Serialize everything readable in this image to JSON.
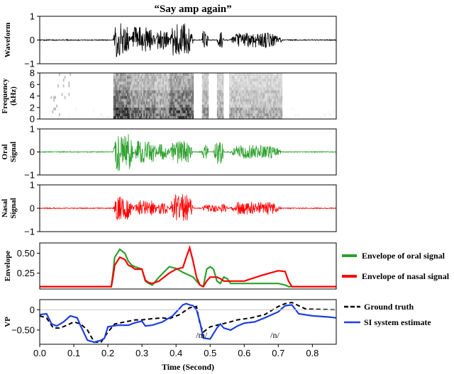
{
  "chart_data": [
    {
      "type": "line",
      "title": "“Say amp again”",
      "ylabel": "Waveform",
      "ylim": [
        -1,
        1
      ],
      "yticks": [
        1,
        0,
        -1
      ],
      "color": "#000000",
      "bursts": [
        {
          "start": 0.215,
          "end": 0.265,
          "amp": 0.72
        },
        {
          "start": 0.265,
          "end": 0.34,
          "amp": 0.55
        },
        {
          "start": 0.34,
          "end": 0.38,
          "amp": 0.45
        },
        {
          "start": 0.38,
          "end": 0.45,
          "amp": 0.7
        },
        {
          "start": 0.475,
          "end": 0.495,
          "amp": 0.4
        },
        {
          "start": 0.52,
          "end": 0.54,
          "amp": 0.35
        },
        {
          "start": 0.555,
          "end": 0.71,
          "amp": 0.32
        }
      ]
    },
    {
      "type": "heatmap",
      "ylabel": "Frequency (kHz)",
      "ylim": [
        0,
        8
      ],
      "yticks": [
        8,
        6,
        4,
        2,
        0
      ],
      "color": "#000000"
    },
    {
      "type": "line",
      "ylabel": "Oral Signal",
      "ylim": [
        -1,
        1
      ],
      "yticks": [
        1,
        0,
        -1
      ],
      "color": "#2ca02c",
      "bursts": [
        {
          "start": 0.215,
          "end": 0.275,
          "amp": 0.82
        },
        {
          "start": 0.275,
          "end": 0.345,
          "amp": 0.5
        },
        {
          "start": 0.345,
          "end": 0.38,
          "amp": 0.35
        },
        {
          "start": 0.38,
          "end": 0.45,
          "amp": 0.5
        },
        {
          "start": 0.475,
          "end": 0.495,
          "amp": 0.38
        },
        {
          "start": 0.51,
          "end": 0.54,
          "amp": 0.55
        },
        {
          "start": 0.555,
          "end": 0.71,
          "amp": 0.3
        }
      ]
    },
    {
      "type": "line",
      "ylabel": "Nasal Signal",
      "ylim": [
        -1,
        1
      ],
      "yticks": [
        1,
        0,
        -1
      ],
      "color": "#ff0000",
      "bursts": [
        {
          "start": 0.215,
          "end": 0.275,
          "amp": 0.5
        },
        {
          "start": 0.275,
          "end": 0.345,
          "amp": 0.35
        },
        {
          "start": 0.345,
          "end": 0.38,
          "amp": 0.25
        },
        {
          "start": 0.38,
          "end": 0.45,
          "amp": 0.6
        },
        {
          "start": 0.475,
          "end": 0.53,
          "amp": 0.15
        },
        {
          "start": 0.53,
          "end": 0.55,
          "amp": 0.2
        },
        {
          "start": 0.555,
          "end": 0.71,
          "amp": 0.28
        }
      ]
    },
    {
      "type": "line",
      "ylabel": "Envelope",
      "ylim": [
        0.05,
        0.63
      ],
      "yticks": [
        0.5,
        0.25
      ],
      "series": [
        {
          "name": "Envelope of oral signal",
          "color": "#2ca02c",
          "x": [
            0.0,
            0.21,
            0.215,
            0.22,
            0.235,
            0.25,
            0.26,
            0.27,
            0.28,
            0.3,
            0.31,
            0.32,
            0.33,
            0.35,
            0.38,
            0.4,
            0.42,
            0.44,
            0.45,
            0.46,
            0.47,
            0.48,
            0.49,
            0.5,
            0.51,
            0.52,
            0.53,
            0.54,
            0.55,
            0.56,
            0.58,
            0.6,
            0.65,
            0.7,
            0.72,
            0.73,
            0.74,
            0.87
          ],
          "y": [
            0.08,
            0.08,
            0.25,
            0.45,
            0.55,
            0.5,
            0.4,
            0.35,
            0.33,
            0.3,
            0.15,
            0.12,
            0.1,
            0.2,
            0.33,
            0.31,
            0.26,
            0.22,
            0.2,
            0.15,
            0.1,
            0.08,
            0.3,
            0.33,
            0.3,
            0.15,
            0.12,
            0.2,
            0.18,
            0.12,
            0.12,
            0.12,
            0.12,
            0.12,
            0.1,
            0.08,
            0.08,
            0.08
          ]
        },
        {
          "name": "Envelope of nasal signal",
          "color": "#ff0000",
          "x": [
            0.0,
            0.21,
            0.215,
            0.22,
            0.235,
            0.25,
            0.26,
            0.27,
            0.28,
            0.3,
            0.31,
            0.32,
            0.33,
            0.35,
            0.38,
            0.4,
            0.42,
            0.43,
            0.44,
            0.45,
            0.46,
            0.47,
            0.48,
            0.49,
            0.5,
            0.52,
            0.53,
            0.54,
            0.55,
            0.58,
            0.6,
            0.65,
            0.7,
            0.72,
            0.73,
            0.74,
            0.87
          ],
          "y": [
            0.08,
            0.08,
            0.2,
            0.35,
            0.45,
            0.42,
            0.35,
            0.33,
            0.3,
            0.3,
            0.16,
            0.13,
            0.12,
            0.15,
            0.25,
            0.3,
            0.32,
            0.45,
            0.57,
            0.4,
            0.2,
            0.1,
            0.08,
            0.15,
            0.2,
            0.2,
            0.18,
            0.15,
            0.15,
            0.15,
            0.15,
            0.22,
            0.28,
            0.27,
            0.15,
            0.08,
            0.08
          ]
        }
      ]
    },
    {
      "type": "line",
      "ylabel": "VP",
      "ylim": [
        -0.85,
        0.25
      ],
      "yticks": [
        0.0,
        -0.5
      ],
      "xlabel": "Time (Second)",
      "xlim": [
        0,
        0.87
      ],
      "xticks": [
        "0.0",
        "0.1",
        "0.2",
        "0.3",
        "0.4",
        "0.5",
        "0.6",
        "0.7",
        "0.8"
      ],
      "annotations": [
        {
          "text": "/m/",
          "x": 0.475,
          "y": -0.45
        },
        {
          "text": "/n/",
          "x": 0.69,
          "y": -0.45
        }
      ],
      "series": [
        {
          "name": "Ground truth",
          "color": "#000000",
          "dashed": true,
          "x": [
            0.0,
            0.02,
            0.04,
            0.06,
            0.08,
            0.1,
            0.12,
            0.14,
            0.16,
            0.18,
            0.2,
            0.22,
            0.25,
            0.28,
            0.3,
            0.33,
            0.36,
            0.38,
            0.41,
            0.44,
            0.46,
            0.47,
            0.48,
            0.5,
            0.52,
            0.55,
            0.58,
            0.62,
            0.66,
            0.7,
            0.72,
            0.74,
            0.78,
            0.87
          ],
          "y": [
            -0.15,
            -0.2,
            -0.45,
            -0.45,
            -0.38,
            -0.3,
            -0.35,
            -0.5,
            -0.8,
            -0.8,
            -0.55,
            -0.35,
            -0.3,
            -0.25,
            -0.25,
            -0.22,
            -0.2,
            -0.22,
            -0.12,
            0.05,
            0.08,
            -0.35,
            -0.55,
            -0.42,
            -0.38,
            -0.32,
            -0.25,
            -0.2,
            -0.12,
            0.08,
            0.15,
            0.18,
            0.02,
            0.0
          ]
        },
        {
          "name": "SI system  estimate",
          "color": "#1f3fe0",
          "dashed": false,
          "x": [
            0.0,
            0.02,
            0.035,
            0.05,
            0.07,
            0.09,
            0.11,
            0.12,
            0.14,
            0.16,
            0.18,
            0.19,
            0.2,
            0.23,
            0.26,
            0.28,
            0.3,
            0.31,
            0.33,
            0.36,
            0.39,
            0.42,
            0.43,
            0.44,
            0.45,
            0.46,
            0.47,
            0.48,
            0.5,
            0.52,
            0.53,
            0.54,
            0.56,
            0.58,
            0.6,
            0.63,
            0.66,
            0.7,
            0.72,
            0.74,
            0.76,
            0.8,
            0.85,
            0.87
          ],
          "y": [
            -0.12,
            -0.1,
            -0.35,
            -0.4,
            -0.3,
            -0.15,
            -0.2,
            -0.4,
            -0.75,
            -0.8,
            -0.75,
            -0.7,
            -0.42,
            -0.38,
            -0.38,
            -0.32,
            -0.28,
            -0.4,
            -0.38,
            -0.3,
            -0.15,
            0.12,
            0.15,
            0.12,
            0.1,
            0.0,
            -0.3,
            -0.7,
            -0.72,
            -0.45,
            -0.35,
            -0.45,
            -0.5,
            -0.4,
            -0.33,
            -0.3,
            -0.2,
            -0.05,
            0.1,
            0.12,
            -0.1,
            -0.15,
            -0.18,
            -0.2
          ]
        }
      ]
    }
  ]
}
